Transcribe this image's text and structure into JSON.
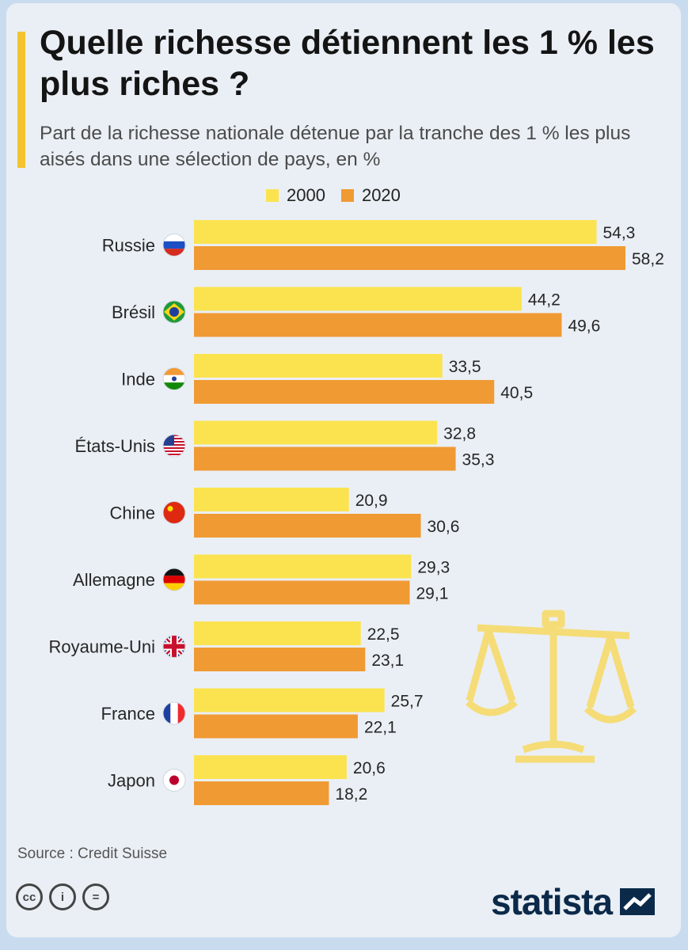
{
  "header": {
    "title": "Quelle richesse détiennent les 1 % les plus riches ?",
    "subtitle": "Part de la richesse nationale détenue par la tranche des 1 % les plus aisés dans une sélection de pays, en %"
  },
  "legend": {
    "label_2000": "2000",
    "label_2020": "2020"
  },
  "colors": {
    "series_2000": "#fbe34f",
    "series_2020": "#f09a33",
    "decor": "#f5dc77"
  },
  "chart_data": {
    "type": "bar",
    "orientation": "horizontal",
    "categories": [
      "Russie",
      "Brésil",
      "Inde",
      "États-Unis",
      "Chine",
      "Allemagne",
      "Royaume-Uni",
      "France",
      "Japon"
    ],
    "category_icons": [
      "russia-flag-icon",
      "brazil-flag-icon",
      "india-flag-icon",
      "usa-flag-icon",
      "china-flag-icon",
      "germany-flag-icon",
      "uk-flag-icon",
      "france-flag-icon",
      "japan-flag-icon"
    ],
    "series": [
      {
        "name": "2000",
        "values": [
          54.3,
          44.2,
          33.5,
          32.8,
          20.9,
          29.3,
          22.5,
          25.7,
          20.6
        ],
        "labels": [
          "54,3",
          "44,2",
          "33,5",
          "32,8",
          "20,9",
          "29,3",
          "22,5",
          "25,7",
          "20,6"
        ]
      },
      {
        "name": "2020",
        "values": [
          58.2,
          49.6,
          40.5,
          35.3,
          30.6,
          29.1,
          23.1,
          22.1,
          18.2
        ],
        "labels": [
          "58,2",
          "49,6",
          "40,5",
          "35,3",
          "30,6",
          "29,1",
          "23,1",
          "22,1",
          "18,2"
        ]
      }
    ],
    "xlim": [
      0,
      58.2
    ],
    "grid": false,
    "legend_position": "top"
  },
  "footer": {
    "source": "Source : Credit Suisse",
    "cc_icons": [
      "cc-icon",
      "by-icon",
      "nd-icon"
    ],
    "cc_glyphs": [
      "cc",
      "i",
      "="
    ],
    "brand": "statista"
  }
}
